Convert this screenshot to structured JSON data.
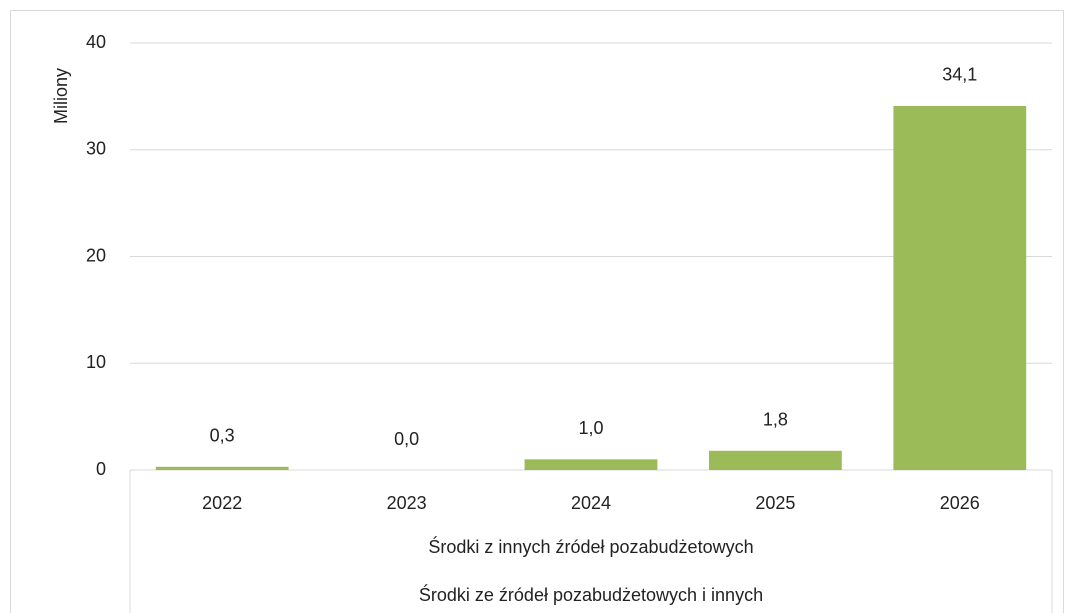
{
  "chart_data": {
    "type": "bar",
    "y_label": "Miliony",
    "categories": [
      "2022",
      "2023",
      "2024",
      "2025",
      "2026"
    ],
    "category_groups": [
      "Środki z innych źródeł pozabudżetowych",
      "Środki ze źródeł pozabudżetowych i innych"
    ],
    "values": [
      0.3,
      0.0,
      1.0,
      1.8,
      34.1
    ],
    "value_labels": [
      "0,3",
      "0,0",
      "1,0",
      "1,8",
      "34,1"
    ],
    "color": "#9bbb59",
    "ylim": [
      0,
      40
    ],
    "yticks": [
      0,
      10,
      20,
      30,
      40
    ],
    "grid": true
  }
}
